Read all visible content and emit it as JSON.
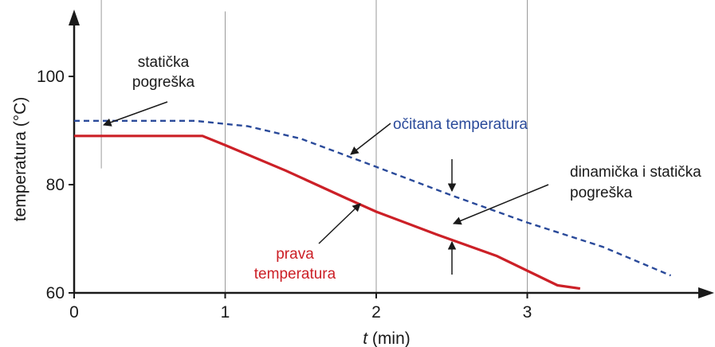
{
  "chart_data": {
    "type": "line",
    "xlabel_var": "t",
    "xlabel_unit": " (min)",
    "ylabel": "temperatura (°C)",
    "xlim": [
      0,
      4.2
    ],
    "ylim": [
      60,
      110
    ],
    "x_ticks": [
      0,
      1,
      2,
      3
    ],
    "y_ticks": [
      60,
      80,
      100
    ],
    "series": [
      {
        "name": "očitana temperatura",
        "color": "#2a4a9a",
        "dash": true,
        "points": [
          [
            0,
            91.8
          ],
          [
            0.8,
            91.8
          ],
          [
            1.15,
            90.8
          ],
          [
            1.5,
            88.5
          ],
          [
            2.0,
            83.3
          ],
          [
            2.5,
            78.0
          ],
          [
            3.0,
            73.0
          ],
          [
            3.5,
            68.5
          ],
          [
            3.95,
            63.2
          ]
        ]
      },
      {
        "name": "prava temperatura",
        "color": "#cc2027",
        "dash": false,
        "points": [
          [
            0,
            89.0
          ],
          [
            0.85,
            89.0
          ],
          [
            1.0,
            87.3
          ],
          [
            1.4,
            82.6
          ],
          [
            1.8,
            77.5
          ],
          [
            2.0,
            75.0
          ],
          [
            2.4,
            70.8
          ],
          [
            2.8,
            66.8
          ],
          [
            3.2,
            61.4
          ],
          [
            3.35,
            60.8
          ]
        ]
      }
    ],
    "annotations": {
      "static_error": [
        "statička",
        "pogreška"
      ],
      "measured": "očitana temperatura",
      "dynamic_error": [
        "dinamička i statička",
        "pogreška"
      ],
      "true_temp": [
        "prava",
        "temperatura"
      ]
    },
    "grid": "vertical markers at t = 0.2, 1, 2, 2.5 (zoom), 3",
    "legend": "none (inline labels)"
  },
  "colors": {
    "measured_line": "#2a4a9a",
    "true_line": "#cc2027",
    "axis": "#1a1a1a",
    "gridline": "#9a9a9a"
  }
}
